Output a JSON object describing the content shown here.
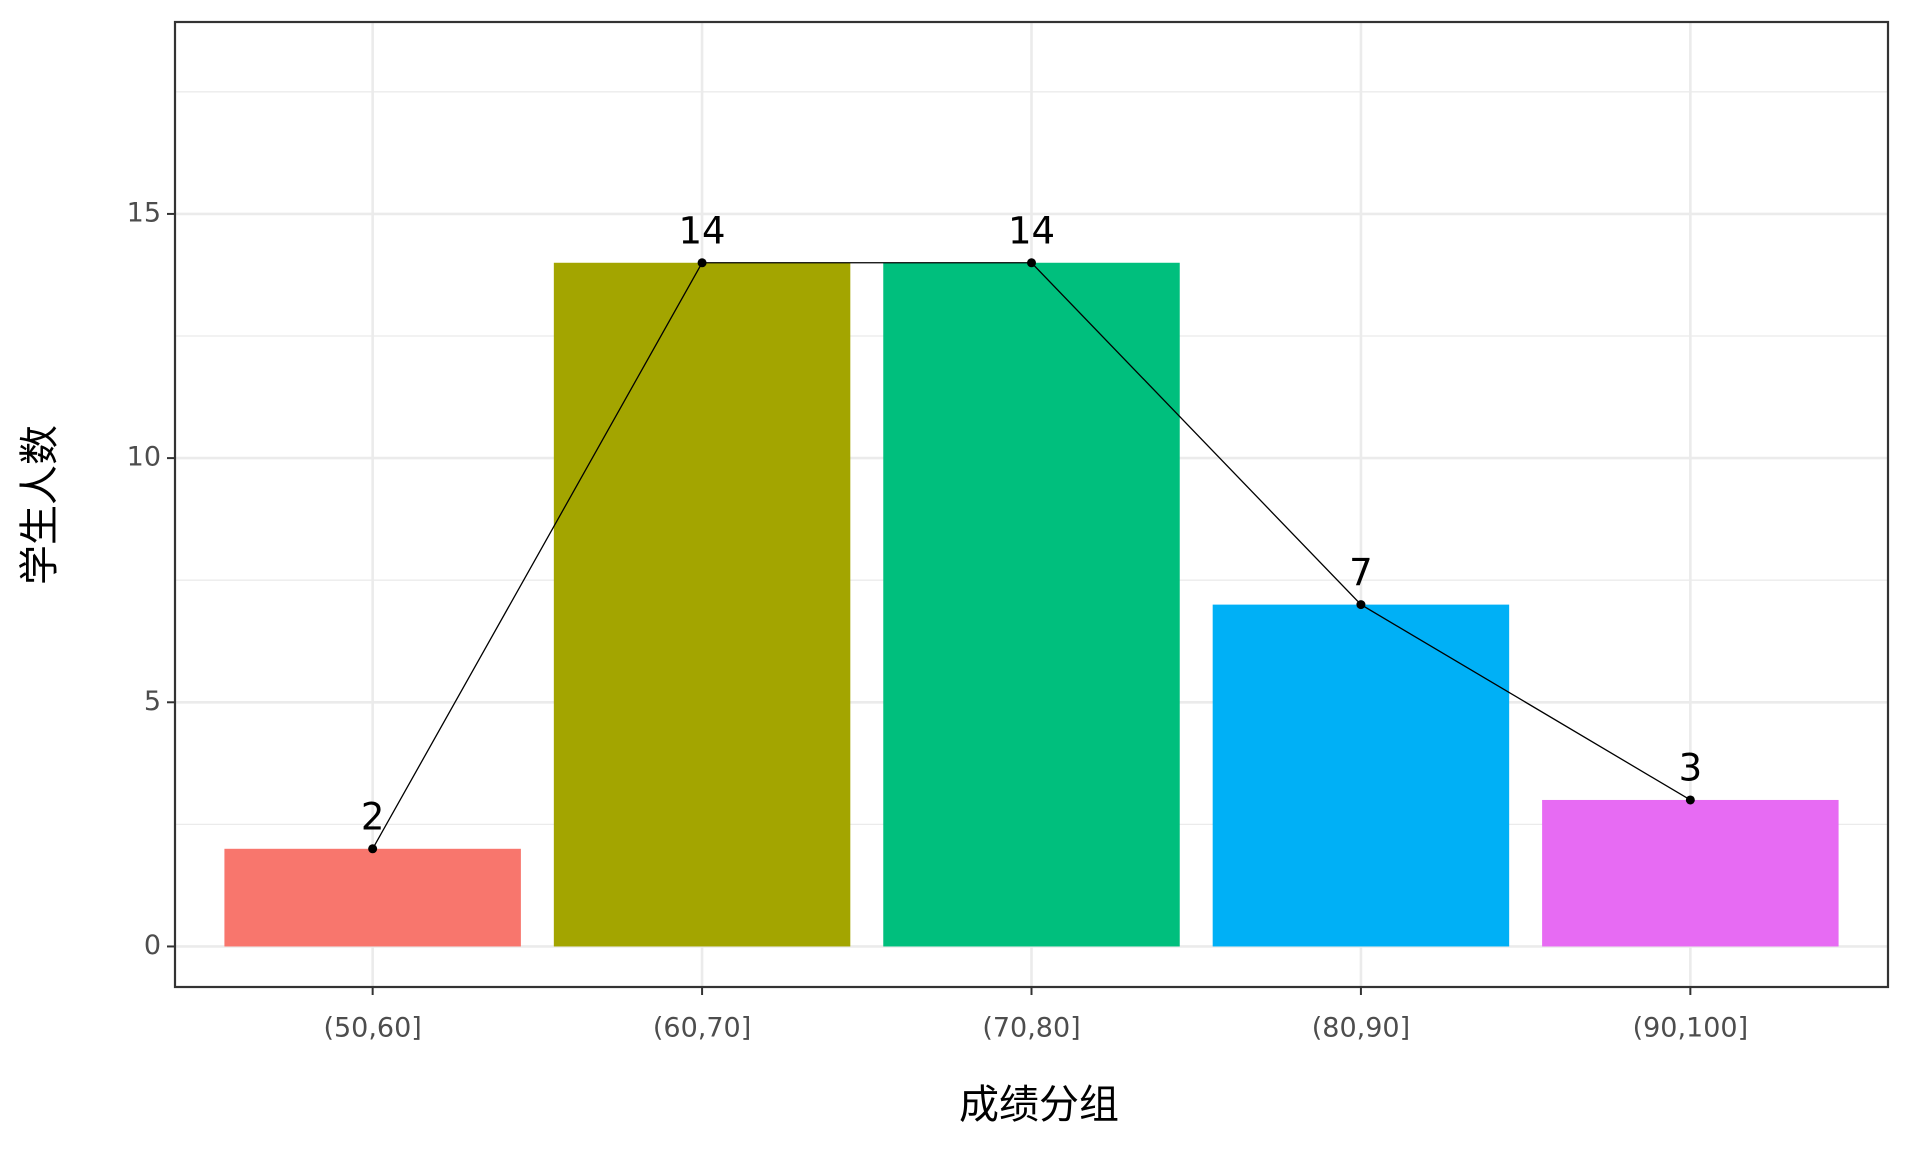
{
  "chart_data": {
    "type": "bar",
    "x_label": "成绩分组",
    "y_label": "学生人数",
    "categories": [
      "(50,60]",
      "(60,70]",
      "(70,80]",
      "(80,90]",
      "(90,100]"
    ],
    "values": [
      2,
      14,
      14,
      7,
      3
    ],
    "colors": [
      "#F8766D",
      "#A3A500",
      "#00BF7D",
      "#00B0F6",
      "#E76BF3"
    ],
    "line_color": "#000000",
    "ylim": [
      -0.83,
      18.93
    ],
    "yticks": [
      0,
      5,
      10,
      15
    ],
    "minor_yticks": [
      2.5,
      7.5,
      12.5,
      17.5
    ],
    "grid": true
  }
}
